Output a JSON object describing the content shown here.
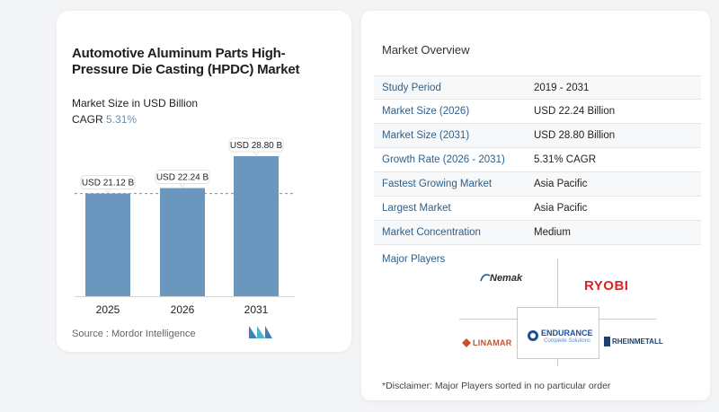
{
  "chart_data": {
    "type": "bar",
    "title": "Automotive Aluminum Parts High-Pressure Die Casting (HPDC) Market",
    "subtitle": "Market Size in USD Billion",
    "cagr_label": "CAGR",
    "cagr_value": "5.31%",
    "categories": [
      "2025",
      "2026",
      "2031"
    ],
    "values": [
      21.12,
      22.24,
      28.8
    ],
    "data_labels": [
      "USD 21.12 B",
      "USD 22.24 B",
      "USD 28.80 B"
    ],
    "ylim": [
      0,
      28.8
    ],
    "grid": false,
    "bar_color": "#6b96bd",
    "reference_line": "dashed, at the 2025 value",
    "source": "Source :  Mordor Intelligence"
  },
  "overview": {
    "title": "Market Overview",
    "rows": [
      {
        "key": "Study Period",
        "value": "2019 - 2031"
      },
      {
        "key": "Market Size (2026)",
        "value": "USD 22.24 Billion"
      },
      {
        "key": "Market Size (2031)",
        "value": "USD 28.80 Billion"
      },
      {
        "key": "Growth Rate (2026 - 2031)",
        "value": "5.31% CAGR"
      },
      {
        "key": "Fastest Growing Market",
        "value": "Asia Pacific"
      },
      {
        "key": "Largest Market",
        "value": "Asia Pacific"
      },
      {
        "key": "Market Concentration",
        "value": "Medium"
      }
    ]
  },
  "players": {
    "title": "Major Players",
    "nemak": "Nemak",
    "ryobi": "RYOBI",
    "endurance": "ENDURANCE",
    "endurance_tagline": "Complete Solutions",
    "linamar": "LINAMAR",
    "rheinmetall": "RHEINMETALL"
  },
  "disclaimer": "*Disclaimer: Major Players sorted in no particular order",
  "colors": {
    "bar": "#6b96bd",
    "key_text": "#2f5f8a",
    "ryobi": "#d8232a",
    "linamar": "#c8502a",
    "endurance": "#1d4f91",
    "rheinmetall": "#1f3f6e"
  }
}
